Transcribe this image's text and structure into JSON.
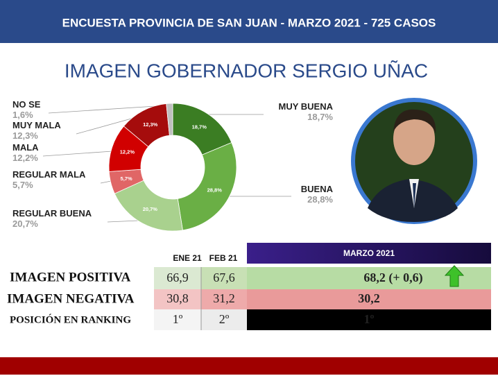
{
  "header": {
    "title": "ENCUESTA PROVINCIA DE SAN JUAN - MARZO 2021 - 725 CASOS"
  },
  "chart_data": {
    "type": "pie",
    "title": "IMAGEN GOBERNADOR SERGIO UÑAC",
    "categories": [
      "MUY BUENA",
      "BUENA",
      "REGULAR BUENA",
      "REGULAR MALA",
      "MALA",
      "MUY MALA",
      "NO SE"
    ],
    "values": [
      18.7,
      28.8,
      20.7,
      5.7,
      12.2,
      12.3,
      1.6
    ],
    "value_labels": [
      "18,7%",
      "28,8%",
      "20,7%",
      "5,7%",
      "12,2%",
      "12,3%",
      "1,6%"
    ],
    "colors": [
      "#3b7d23",
      "#6aaf45",
      "#a9d18e",
      "#e06666",
      "#d10000",
      "#a50c0c",
      "#bfbfbf"
    ]
  },
  "table": {
    "columns": [
      "ENE 21",
      "FEB 21",
      "MARZO 2021"
    ],
    "rows": [
      [
        "IMAGEN POSITIVA",
        "66,9",
        "67,6",
        "68,2 (+ 0,6)"
      ],
      [
        "IMAGEN NEGATIVA",
        "30,8",
        "31,2",
        "30,2"
      ],
      [
        "POSICIÓN EN RANKING",
        "1º",
        "2º",
        "1º"
      ]
    ]
  }
}
